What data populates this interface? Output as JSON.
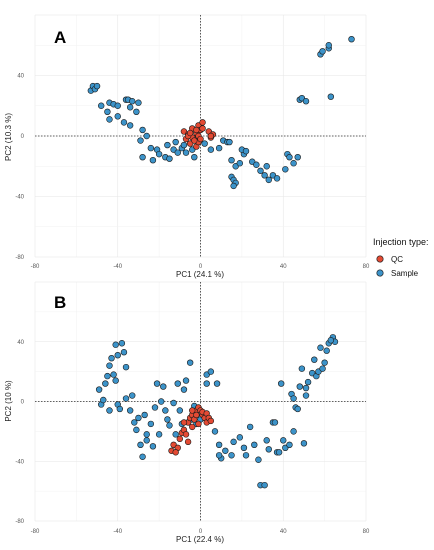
{
  "legend": {
    "title": "Injection type:",
    "items": [
      {
        "label": "QC",
        "color": "#E34A33"
      },
      {
        "label": "Sample",
        "color": "#3C93C9"
      }
    ],
    "placement": "right-center"
  },
  "chart_data": [
    {
      "type": "scatter",
      "panel": "A",
      "title": "",
      "xlabel": "PC1 (24.1 %)",
      "ylabel": "PC2 (10.3 %)",
      "xlim": [
        -80,
        80
      ],
      "ylim": [
        -80,
        80
      ],
      "xticks": [
        -80,
        -40,
        0,
        40,
        80
      ],
      "yticks": [
        -80,
        -40,
        0,
        40
      ],
      "grid": true,
      "reference_lines": {
        "x": 0,
        "y": 0,
        "style": "dotted"
      },
      "series": [
        {
          "name": "QC",
          "color": "#E34A33",
          "points": [
            [
              -8,
              3
            ],
            [
              -6,
              1
            ],
            [
              -4,
              5
            ],
            [
              -3,
              -2
            ],
            [
              -2,
              2
            ],
            [
              -1,
              7
            ],
            [
              0,
              4
            ],
            [
              1,
              9
            ],
            [
              -7,
              -2
            ],
            [
              -5,
              -5
            ],
            [
              -4,
              -1
            ],
            [
              -2,
              -7
            ],
            [
              -1,
              -4
            ],
            [
              -3,
              -3
            ],
            [
              -6,
              0
            ],
            [
              4,
              3
            ],
            [
              5,
              -1
            ],
            [
              6,
              1
            ],
            [
              5,
              0
            ],
            [
              -1,
              0
            ],
            [
              0,
              -2
            ],
            [
              -2,
              4
            ],
            [
              -5,
              2
            ],
            [
              1,
              5
            ]
          ]
        },
        {
          "name": "Sample",
          "color": "#3C93C9",
          "points": [
            [
              -53,
              30
            ],
            [
              -52,
              33
            ],
            [
              -51,
              31
            ],
            [
              -50,
              33
            ],
            [
              -48,
              20
            ],
            [
              -45,
              16
            ],
            [
              -44,
              11
            ],
            [
              -44,
              22
            ],
            [
              -42,
              21
            ],
            [
              -40,
              20
            ],
            [
              -40,
              13
            ],
            [
              -36,
              24
            ],
            [
              -35,
              24
            ],
            [
              -34,
              19
            ],
            [
              -33,
              23
            ],
            [
              -31,
              16
            ],
            [
              -30,
              22
            ],
            [
              -37,
              9
            ],
            [
              -34,
              7
            ],
            [
              -29,
              -3
            ],
            [
              -28,
              4
            ],
            [
              -28,
              -14
            ],
            [
              -26,
              0
            ],
            [
              -24,
              -8
            ],
            [
              -23,
              -16
            ],
            [
              -21,
              -9
            ],
            [
              -20,
              -12
            ],
            [
              -17,
              -14
            ],
            [
              -16,
              -6
            ],
            [
              -15,
              -15
            ],
            [
              -13,
              -9
            ],
            [
              -12,
              -4
            ],
            [
              -11,
              -11
            ],
            [
              -9,
              -8
            ],
            [
              -8,
              -6
            ],
            [
              -7,
              -11
            ],
            [
              -4,
              -9
            ],
            [
              -3,
              -14
            ],
            [
              2,
              -5
            ],
            [
              5,
              -9
            ],
            [
              9,
              -8
            ],
            [
              11,
              -3
            ],
            [
              13,
              -4
            ],
            [
              14,
              -4
            ],
            [
              15,
              -27
            ],
            [
              15,
              -16
            ],
            [
              16,
              -29
            ],
            [
              17,
              -20
            ],
            [
              19,
              -18
            ],
            [
              17,
              -31
            ],
            [
              16,
              -33
            ],
            [
              21,
              -12
            ],
            [
              20,
              -9
            ],
            [
              22,
              -10
            ],
            [
              25,
              -17
            ],
            [
              27,
              -19
            ],
            [
              29,
              -23
            ],
            [
              31,
              -26
            ],
            [
              32,
              -20
            ],
            [
              33,
              -29
            ],
            [
              35,
              -26
            ],
            [
              37,
              -28
            ],
            [
              41,
              -22
            ],
            [
              42,
              -12
            ],
            [
              43,
              -14
            ],
            [
              45,
              -18
            ],
            [
              47,
              -14
            ],
            [
              48,
              24
            ],
            [
              49,
              25
            ],
            [
              51,
              23
            ],
            [
              58,
              54
            ],
            [
              59,
              56
            ],
            [
              62,
              58
            ],
            [
              62,
              60
            ],
            [
              63,
              26
            ],
            [
              73,
              64
            ]
          ]
        }
      ]
    },
    {
      "type": "scatter",
      "panel": "B",
      "title": "",
      "xlabel": "PC1 (22.4 %)",
      "ylabel": "PC2 (10 %)",
      "xlim": [
        -80,
        80
      ],
      "ylim": [
        -80,
        80
      ],
      "xticks": [
        -80,
        -40,
        0,
        40,
        80
      ],
      "yticks": [
        -80,
        -40,
        0,
        40
      ],
      "grid": true,
      "reference_lines": {
        "x": 0,
        "y": 0,
        "style": "dotted"
      },
      "series": [
        {
          "name": "QC",
          "color": "#E34A33",
          "points": [
            [
              -14,
              -33
            ],
            [
              -13,
              -29
            ],
            [
              -11,
              -31
            ],
            [
              -10,
              -25
            ],
            [
              -9,
              -21
            ],
            [
              -8,
              -19
            ],
            [
              -7,
              -22
            ],
            [
              -6,
              -14
            ],
            [
              -5,
              -11
            ],
            [
              -4,
              -9
            ],
            [
              -4,
              -17
            ],
            [
              -3,
              -12
            ],
            [
              -2,
              -6
            ],
            [
              -2,
              -9
            ],
            [
              -1,
              -4
            ],
            [
              0,
              -6
            ],
            [
              1,
              -9
            ],
            [
              1,
              -7
            ],
            [
              2,
              -11
            ],
            [
              3,
              -8
            ],
            [
              3,
              -14
            ],
            [
              4,
              -11
            ],
            [
              5,
              -13
            ],
            [
              -12,
              -34
            ],
            [
              -6,
              -27
            ],
            [
              -8,
              -14
            ],
            [
              -4,
              -6
            ],
            [
              -1,
              -15
            ]
          ]
        },
        {
          "name": "Sample",
          "color": "#3C93C9",
          "points": [
            [
              -49,
              8
            ],
            [
              -48,
              -2
            ],
            [
              -47,
              1
            ],
            [
              -46,
              12
            ],
            [
              -45,
              17
            ],
            [
              -44,
              24
            ],
            [
              -44,
              -6
            ],
            [
              -43,
              29
            ],
            [
              -42,
              18
            ],
            [
              -41,
              14
            ],
            [
              -41,
              38
            ],
            [
              -40,
              31
            ],
            [
              -40,
              -2
            ],
            [
              -39,
              -5
            ],
            [
              -38,
              39
            ],
            [
              -37,
              33
            ],
            [
              -36,
              23
            ],
            [
              -36,
              2
            ],
            [
              -34,
              -6
            ],
            [
              -33,
              4
            ],
            [
              -32,
              -14
            ],
            [
              -31,
              -19
            ],
            [
              -30,
              -11
            ],
            [
              -29,
              -29
            ],
            [
              -28,
              -37
            ],
            [
              -27,
              -9
            ],
            [
              -26,
              -26
            ],
            [
              -26,
              -22
            ],
            [
              -24,
              -15
            ],
            [
              -23,
              -30
            ],
            [
              -22,
              -4
            ],
            [
              -21,
              12
            ],
            [
              -20,
              -22
            ],
            [
              -19,
              0
            ],
            [
              -18,
              10
            ],
            [
              -17,
              -6
            ],
            [
              -16,
              -12
            ],
            [
              -15,
              -16
            ],
            [
              -13,
              -1
            ],
            [
              -12,
              -22
            ],
            [
              -11,
              12
            ],
            [
              -10,
              -6
            ],
            [
              -9,
              -15
            ],
            [
              -8,
              8
            ],
            [
              -7,
              14
            ],
            [
              -6,
              -14
            ],
            [
              -5,
              26
            ],
            [
              -4,
              -12
            ],
            [
              -3,
              -3
            ],
            [
              -2,
              -15
            ],
            [
              0,
              -12
            ],
            [
              2,
              -10
            ],
            [
              3,
              18
            ],
            [
              3,
              12
            ],
            [
              5,
              20
            ],
            [
              8,
              12
            ],
            [
              7,
              -20
            ],
            [
              9,
              -29
            ],
            [
              10,
              -38
            ],
            [
              9,
              -36
            ],
            [
              12,
              -33
            ],
            [
              15,
              -36
            ],
            [
              16,
              -27
            ],
            [
              19,
              -24
            ],
            [
              21,
              -31
            ],
            [
              22,
              -36
            ],
            [
              24,
              -17
            ],
            [
              26,
              -29
            ],
            [
              28,
              -39
            ],
            [
              29,
              -56
            ],
            [
              31,
              -56
            ],
            [
              32,
              -26
            ],
            [
              33,
              -32
            ],
            [
              35,
              -14
            ],
            [
              36,
              -14
            ],
            [
              37,
              -34
            ],
            [
              38,
              -34
            ],
            [
              39,
              12
            ],
            [
              40,
              -26
            ],
            [
              41,
              -31
            ],
            [
              43,
              -29
            ],
            [
              45,
              -20
            ],
            [
              46,
              -4
            ],
            [
              48,
              10
            ],
            [
              49,
              22
            ],
            [
              50,
              -28
            ],
            [
              51,
              9
            ],
            [
              51,
              4
            ],
            [
              52,
              13
            ],
            [
              54,
              19
            ],
            [
              55,
              28
            ],
            [
              56,
              17
            ],
            [
              57,
              20
            ],
            [
              58,
              36
            ],
            [
              59,
              22
            ],
            [
              60,
              26
            ],
            [
              61,
              34
            ],
            [
              62,
              39
            ],
            [
              64,
              43
            ],
            [
              65,
              40
            ],
            [
              63,
              41
            ],
            [
              44,
              5
            ],
            [
              45,
              2
            ],
            [
              47,
              -5
            ]
          ]
        }
      ]
    }
  ]
}
